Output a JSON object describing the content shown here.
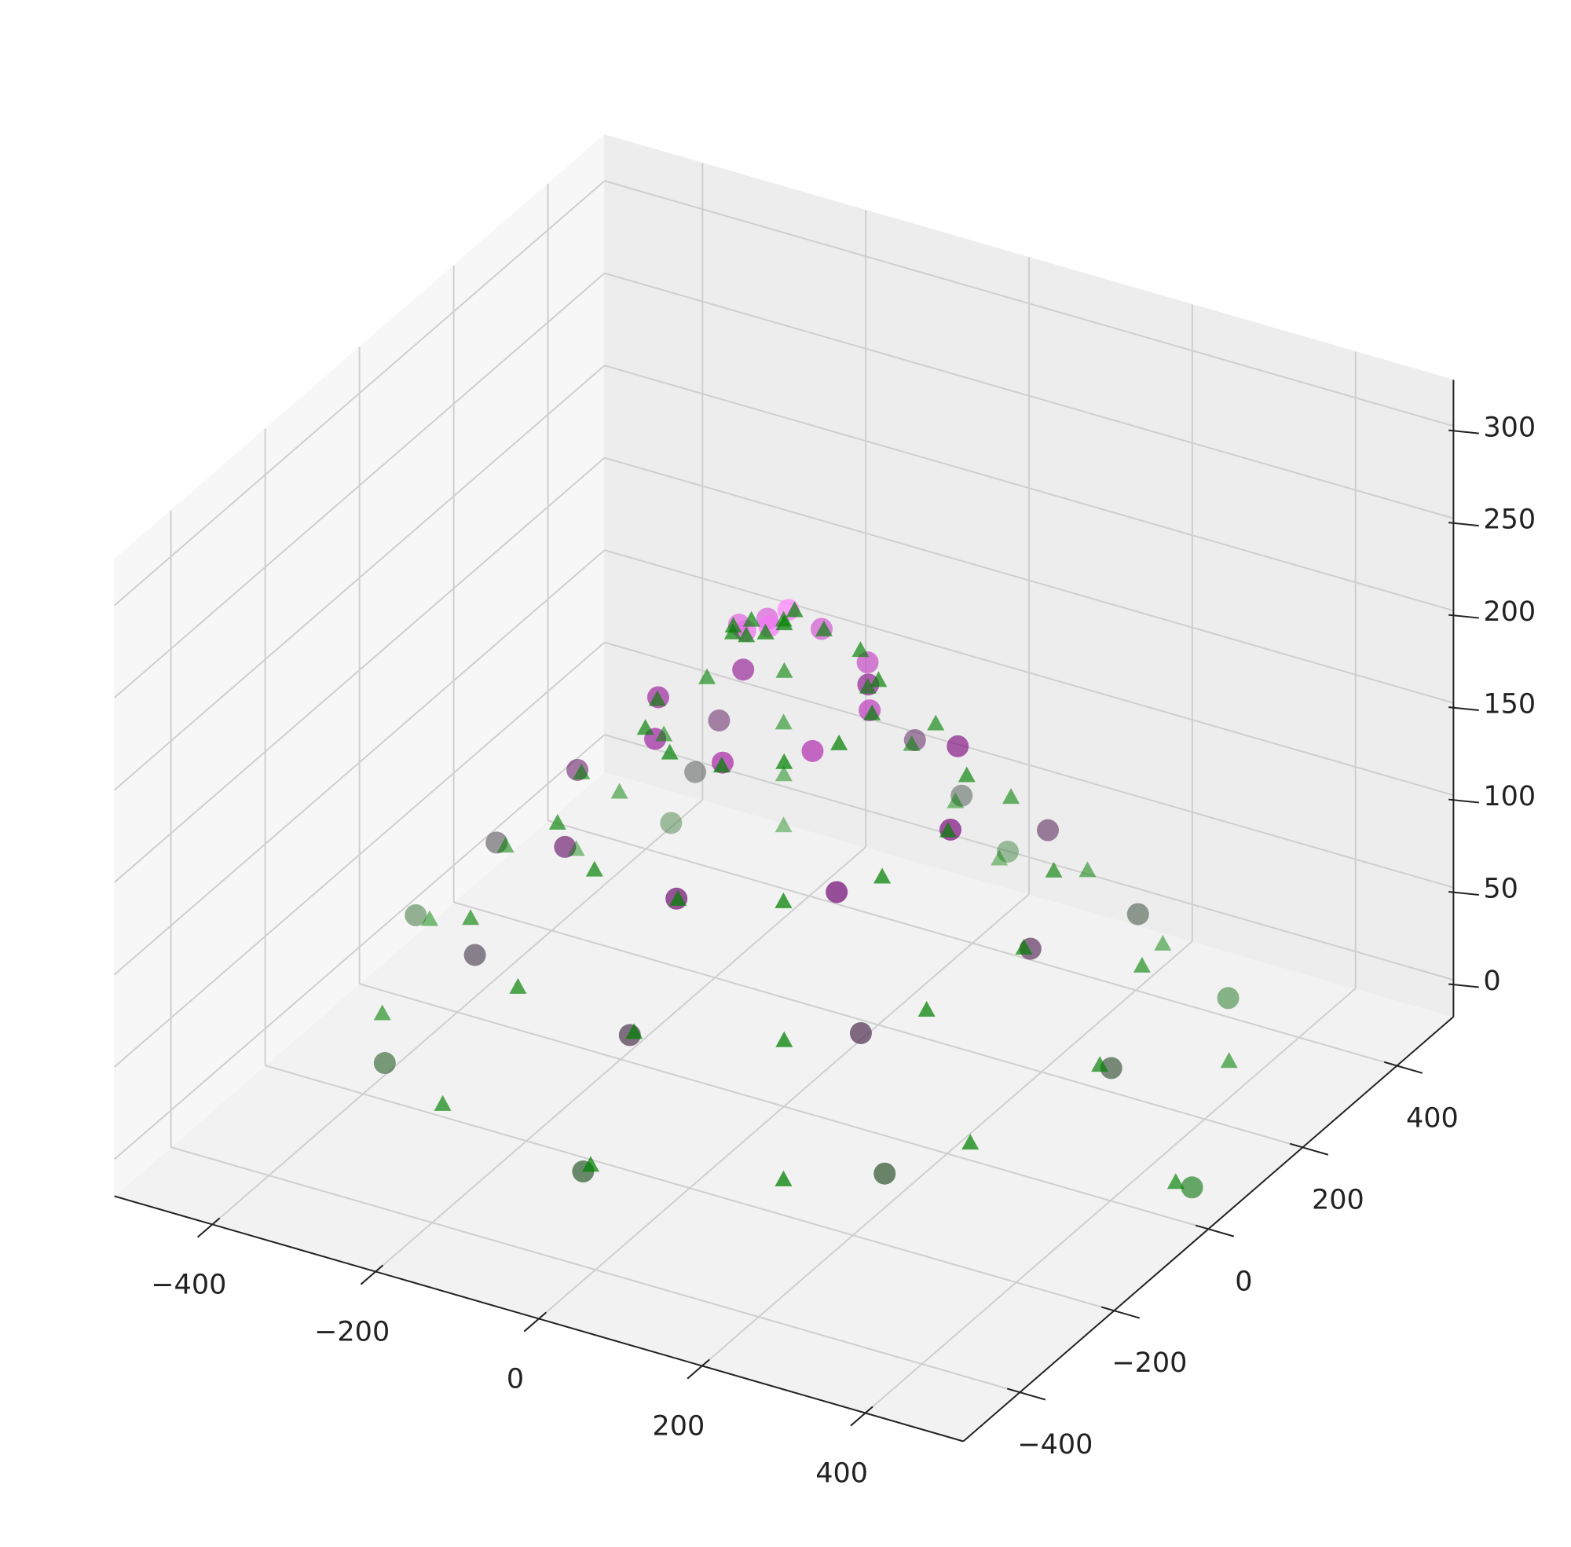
{
  "chart_data": {
    "type": "scatter3d",
    "xlim": [
      -520,
      520
    ],
    "ylim": [
      -520,
      520
    ],
    "zlim": [
      -20,
      325
    ],
    "xticks": [
      {
        "value": -400,
        "label": "−400"
      },
      {
        "value": -200,
        "label": "−200"
      },
      0,
      200,
      400
    ],
    "yticks": [
      {
        "value": -400,
        "label": "−400"
      },
      {
        "value": -200,
        "label": "−200"
      },
      0,
      200,
      400
    ],
    "zticks": [
      0,
      50,
      100,
      150,
      200,
      250,
      300
    ],
    "grid": true,
    "depthshade": true,
    "series": [
      {
        "marker": "o",
        "colormap": [
          "#1f7f1f",
          "#4d4050",
          "#800080",
          "#ff80ff"
        ],
        "x": [
          500,
          345,
          0,
          -327,
          -451,
          -310,
          0,
          292,
          401,
          275,
          0,
          -257,
          -352,
          -240,
          0,
          223,
          302,
          205,
          0,
          -188,
          -253,
          -170,
          0,
          153,
          204,
          135,
          0,
          -118,
          -154,
          -100,
          0,
          83,
          105,
          65,
          0,
          -48,
          -55,
          -30,
          0,
          13
        ],
        "y": [
          0,
          345,
          475,
          327,
          0,
          -310,
          -426,
          -292,
          0,
          275,
          377,
          257,
          0,
          -240,
          -327,
          -223,
          0,
          205,
          278,
          188,
          0,
          -170,
          -228,
          -153,
          0,
          135,
          179,
          118,
          0,
          -100,
          -130,
          -83,
          0,
          65,
          80,
          48,
          0,
          -30,
          -31,
          -13
        ],
        "z": [
          0,
          6.5,
          13,
          19.5,
          26,
          32.5,
          39,
          45.5,
          52,
          58.5,
          65,
          71.5,
          78,
          84.5,
          91,
          97.5,
          104,
          110.5,
          117,
          123.5,
          130,
          136.5,
          143,
          149.5,
          156,
          162.5,
          169,
          175.5,
          182,
          188.5,
          195,
          201.5,
          208,
          214.5,
          221,
          227.5,
          234,
          240.5,
          247,
          253.5
        ]
      },
      {
        "marker": "^",
        "color": "#008000",
        "x": [
          480,
          409,
          232,
          0,
          -225,
          -382,
          -434,
          -369,
          -209,
          0,
          201,
          342,
          387,
          329,
          186,
          0,
          -178,
          -302,
          -341,
          -288,
          -163,
          0,
          155,
          262,
          294,
          248,
          139,
          0,
          -132,
          -221,
          -248,
          -208,
          -116,
          0,
          108,
          181,
          201,
          168,
          93,
          0,
          -85,
          -141,
          -155,
          -127,
          -70,
          0,
          62,
          101,
          108,
          87,
          47,
          0,
          -39,
          -60,
          -62,
          -47,
          -23,
          0,
          16,
          20
        ],
        "y": [
          0,
          236,
          402,
          457,
          389,
          221,
          0,
          -213,
          -362,
          -410,
          -349,
          -197,
          0,
          190,
          322,
          364,
          308,
          174,
          0,
          -166,
          -282,
          -318,
          -268,
          -151,
          0,
          143,
          241,
          271,
          228,
          128,
          0,
          -120,
          -201,
          -225,
          -188,
          -105,
          0,
          97,
          161,
          178,
          148,
          81,
          0,
          -74,
          -121,
          -132,
          -107,
          -58,
          0,
          50,
          81,
          85,
          67,
          35,
          0,
          -27,
          -40,
          -39,
          -27,
          -12
        ],
        "z": [
          0,
          4.3,
          8.6,
          12.9,
          17.2,
          21.5,
          25.8,
          30.1,
          34.4,
          38.7,
          43,
          47.3,
          51.6,
          55.9,
          60.2,
          64.5,
          68.8,
          73.1,
          77.4,
          81.7,
          86,
          90.3,
          94.6,
          98.9,
          103.2,
          107.5,
          111.8,
          116.1,
          120.4,
          124.7,
          129,
          133.3,
          137.6,
          141.9,
          146.2,
          150.5,
          154.8,
          159.1,
          163.4,
          167.7,
          172,
          176.3,
          180.6,
          184.9,
          189.2,
          193.5,
          197.8,
          202.1,
          206.4,
          210.7,
          215,
          219.3,
          223.6,
          227.9,
          232.2,
          236.5,
          240.8,
          245.1,
          249.4,
          253.7
        ]
      }
    ]
  }
}
